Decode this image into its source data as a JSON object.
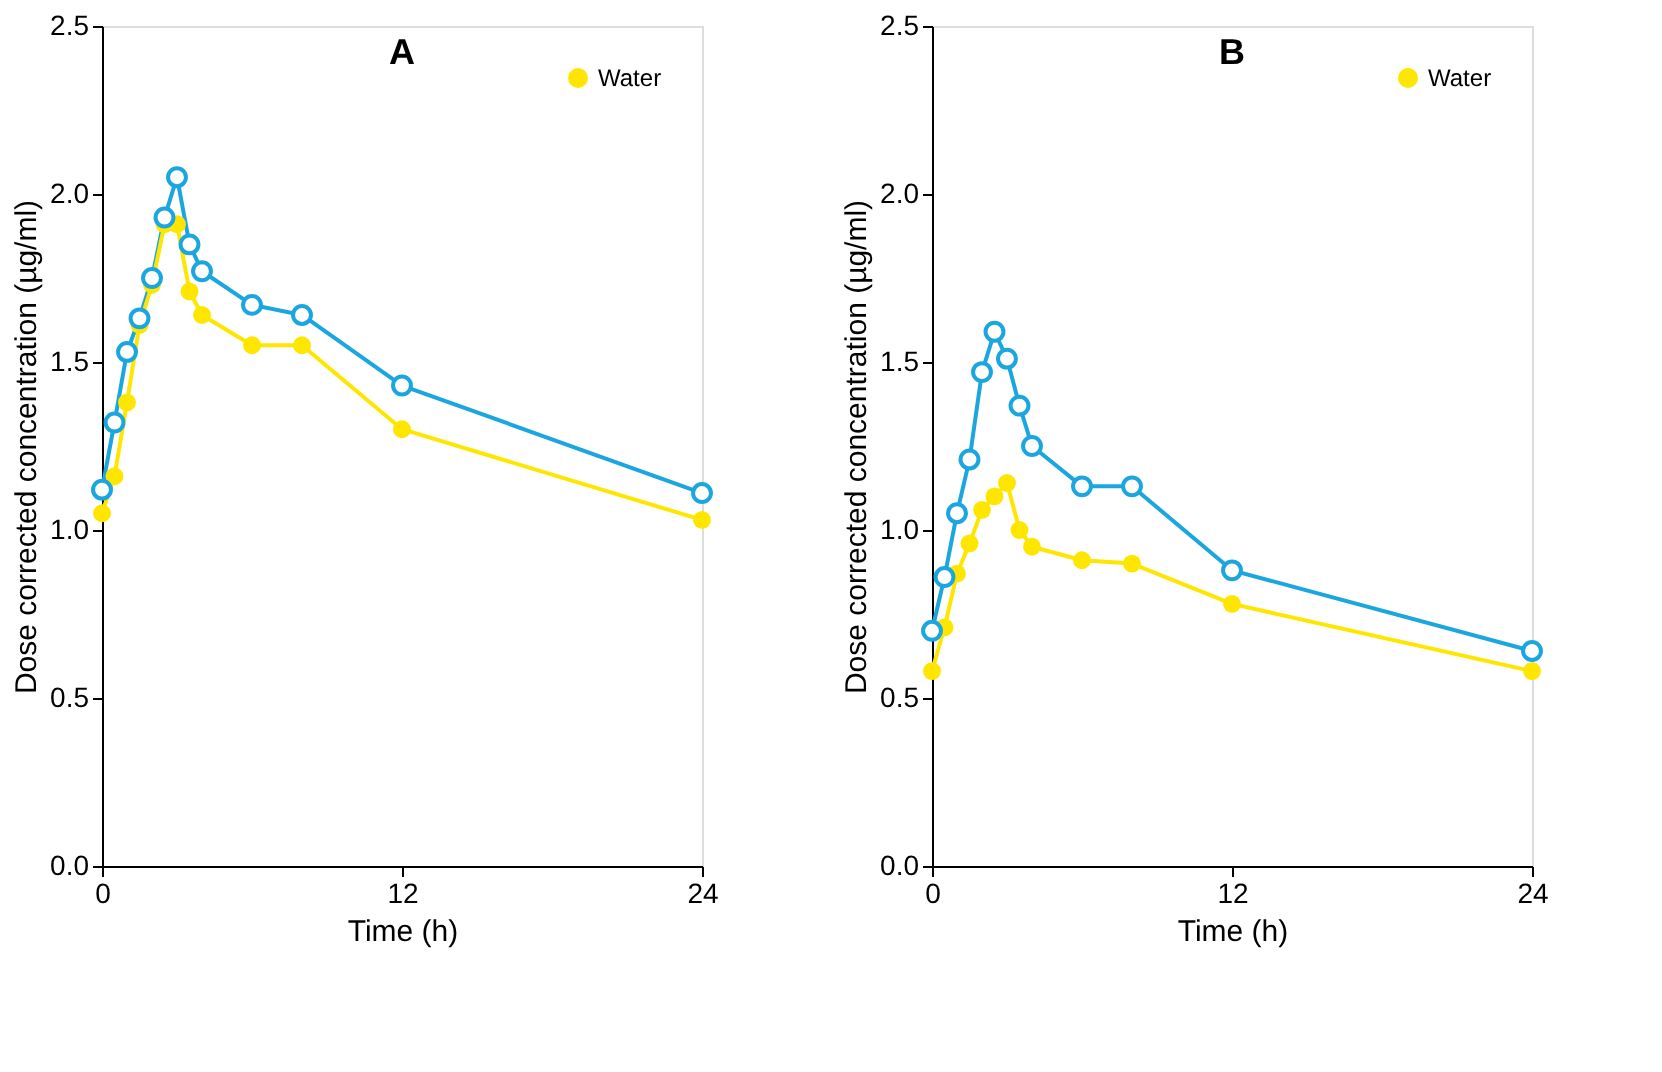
{
  "chart_data": [
    {
      "type": "line",
      "title": "A",
      "xlabel": "Time (h)",
      "ylabel": "Dose corrected concentration (µg/ml)",
      "x": [
        0,
        0.5,
        1,
        1.5,
        2,
        2.5,
        3,
        3.5,
        4,
        6,
        8,
        12,
        24
      ],
      "xlim": [
        0,
        24
      ],
      "xticks": [
        0,
        12,
        24
      ],
      "ylim": [
        0,
        2.5
      ],
      "yticks": [
        {
          "value": 0,
          "label": "0.0"
        },
        0.5,
        {
          "value": 1,
          "label": "1.0"
        },
        1.5,
        {
          "value": 2,
          "label": "2.0"
        },
        2.5
      ],
      "grid": false,
      "legend": "top right",
      "marker": "circle",
      "line_style": "solid",
      "series": [
        {
          "color": "#1ba6e0",
          "values": [
            1.12,
            1.32,
            1.53,
            1.63,
            1.75,
            1.93,
            2.05,
            1.85,
            1.77,
            1.67,
            1.64,
            1.43,
            1.11
          ]
        },
        {
          "name": "Water",
          "color": "#ffe600",
          "values": [
            1.05,
            1.16,
            1.38,
            1.61,
            1.73,
            1.91,
            1.91,
            1.71,
            1.64,
            1.55,
            1.55,
            1.3,
            1.03
          ]
        }
      ]
    },
    {
      "type": "line",
      "title": "B",
      "xlabel": "Time (h)",
      "ylabel": "Dose corrected concentration (µg/ml)",
      "x": [
        0,
        0.5,
        1,
        1.5,
        2,
        2.5,
        3,
        3.5,
        4,
        6,
        8,
        12,
        24
      ],
      "xlim": [
        0,
        24
      ],
      "xticks": [
        0,
        12,
        24
      ],
      "ylim": [
        0,
        2.5
      ],
      "yticks": [
        {
          "value": 0,
          "label": "0.0"
        },
        0.5,
        {
          "value": 1,
          "label": "1.0"
        },
        1.5,
        {
          "value": 2,
          "label": "2.0"
        },
        2.5
      ],
      "grid": false,
      "legend": "top right",
      "marker": "circle",
      "line_style": "solid",
      "series": [
        {
          "color": "#1ba6e0",
          "values": [
            0.7,
            0.86,
            1.05,
            1.21,
            1.47,
            1.59,
            1.51,
            1.37,
            1.25,
            1.13,
            1.13,
            0.88,
            0.64
          ]
        },
        {
          "name": "Water",
          "color": "#ffe600",
          "values": [
            0.58,
            0.71,
            0.87,
            0.96,
            1.06,
            1.1,
            1.14,
            1.0,
            0.95,
            0.91,
            0.9,
            0.78,
            0.58
          ]
        }
      ]
    }
  ]
}
